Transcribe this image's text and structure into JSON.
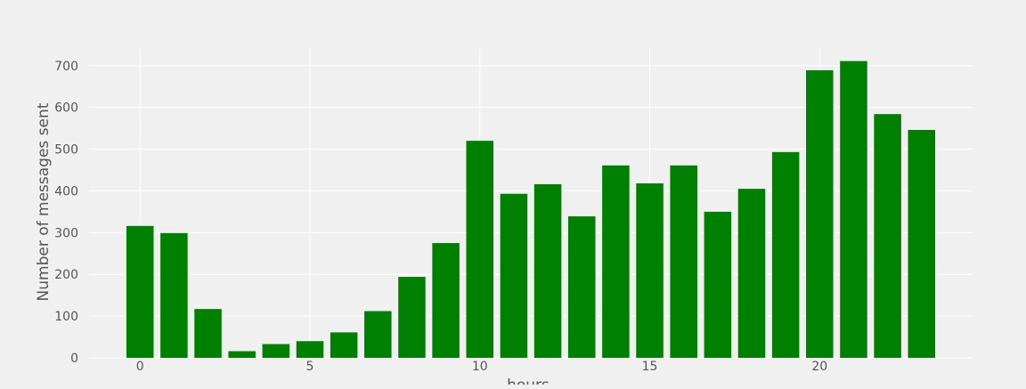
{
  "chart_data": {
    "type": "bar",
    "x": [
      0,
      1,
      2,
      3,
      4,
      5,
      6,
      7,
      8,
      9,
      10,
      11,
      12,
      13,
      14,
      15,
      16,
      17,
      18,
      19,
      20,
      21,
      22,
      23
    ],
    "values": [
      316,
      299,
      117,
      16,
      33,
      40,
      61,
      112,
      194,
      275,
      520,
      393,
      416,
      339,
      461,
      418,
      461,
      350,
      405,
      493,
      689,
      711,
      584,
      546
    ],
    "xticks": [
      0,
      5,
      10,
      15,
      20
    ],
    "yticks": [
      0,
      100,
      200,
      300,
      400,
      500,
      600,
      700
    ],
    "xlim": [
      -1.5,
      24.5
    ],
    "ylim": [
      0,
      740
    ],
    "xlabel": "hours",
    "ylabel": "Number of messages sent",
    "grid": true,
    "bar_color": "#008000",
    "background_color": "#f0f0f0"
  }
}
